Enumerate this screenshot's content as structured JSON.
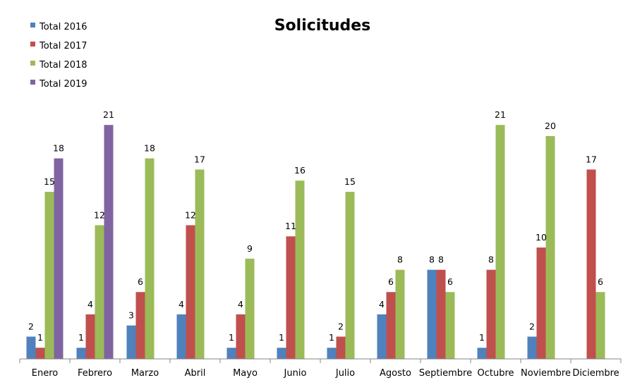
{
  "chart_data": {
    "type": "bar",
    "title": "Solicitudes",
    "categories": [
      "Enero",
      "Febrero",
      "Marzo",
      "Abril",
      "Mayo",
      "Junio",
      "Julio",
      "Agosto",
      "Septiembre",
      "Octubre",
      "Noviembre",
      "Diciembre"
    ],
    "series": [
      {
        "name": "Total 2016",
        "color": "#4F81BD",
        "values": [
          2,
          1,
          3,
          4,
          1,
          1,
          1,
          4,
          8,
          1,
          2,
          null
        ]
      },
      {
        "name": "Total 2017",
        "color": "#C0504D",
        "values": [
          1,
          4,
          6,
          12,
          4,
          11,
          2,
          6,
          8,
          8,
          10,
          17
        ]
      },
      {
        "name": "Total 2018",
        "color": "#9BBB59",
        "values": [
          15,
          12,
          18,
          17,
          9,
          16,
          15,
          8,
          6,
          21,
          20,
          6
        ]
      },
      {
        "name": "Total 2019",
        "color": "#8064A2",
        "values": [
          18,
          21,
          null,
          null,
          null,
          null,
          null,
          null,
          null,
          null,
          null,
          null
        ]
      }
    ],
    "ylim": [
      0,
      21
    ],
    "grid": false,
    "legend": "top-left",
    "data_labels": true
  }
}
